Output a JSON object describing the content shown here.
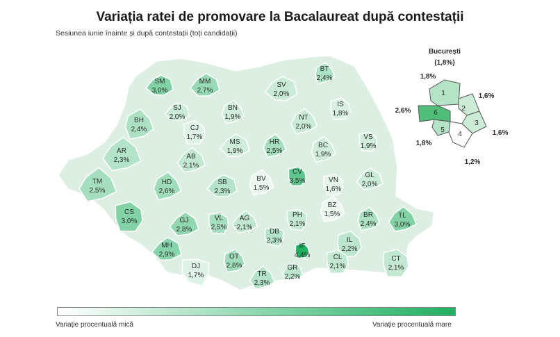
{
  "title": "Variația ratei de promovare la Bacalaureat după contestații",
  "subtitle": "Sesiunea iunie înainte și după contestații (toți candidații)",
  "legend": {
    "low_label": "Variație procentuală mică",
    "high_label": "Variație procentuală mare",
    "color_low": "#ffffff",
    "color_high": "#1fb061"
  },
  "counties": [
    {
      "code": "SM",
      "value": "3,0%"
    },
    {
      "code": "MM",
      "value": "2,7%"
    },
    {
      "code": "SV",
      "value": "2,0%"
    },
    {
      "code": "BT",
      "value": "2,4%"
    },
    {
      "code": "SJ",
      "value": "2,0%"
    },
    {
      "code": "BN",
      "value": "1,9%"
    },
    {
      "code": "NT",
      "value": "2,0%"
    },
    {
      "code": "IS",
      "value": "1,8%"
    },
    {
      "code": "BH",
      "value": "2,4%"
    },
    {
      "code": "CJ",
      "value": "1,7%"
    },
    {
      "code": "MS",
      "value": "1,9%"
    },
    {
      "code": "HR",
      "value": "2,5%"
    },
    {
      "code": "BC",
      "value": "1,9%"
    },
    {
      "code": "VS",
      "value": "1,9%"
    },
    {
      "code": "AR",
      "value": "2,3%"
    },
    {
      "code": "AB",
      "value": "2,1%"
    },
    {
      "code": "CV",
      "value": "3,5%"
    },
    {
      "code": "GL",
      "value": "2,0%"
    },
    {
      "code": "TM",
      "value": "2,5%"
    },
    {
      "code": "HD",
      "value": "2,6%"
    },
    {
      "code": "SB",
      "value": "2,3%"
    },
    {
      "code": "BV",
      "value": "1,5%"
    },
    {
      "code": "VN",
      "value": "1,6%"
    },
    {
      "code": "BZ",
      "value": "1,5%"
    },
    {
      "code": "CS",
      "value": "3,0%"
    },
    {
      "code": "GJ",
      "value": "2,8%"
    },
    {
      "code": "VL",
      "value": "2,5%"
    },
    {
      "code": "AG",
      "value": "2,1%"
    },
    {
      "code": "PH",
      "value": "2,1%"
    },
    {
      "code": "BR",
      "value": "2,4%"
    },
    {
      "code": "TL",
      "value": "3,0%"
    },
    {
      "code": "DB",
      "value": "2,3%"
    },
    {
      "code": "IF",
      "value": "4,4%"
    },
    {
      "code": "IL",
      "value": "2,2%"
    },
    {
      "code": "MH",
      "value": "2,9%"
    },
    {
      "code": "OT",
      "value": "2,6%"
    },
    {
      "code": "DJ",
      "value": "1,7%"
    },
    {
      "code": "TR",
      "value": "2,3%"
    },
    {
      "code": "GR",
      "value": "2,2%"
    },
    {
      "code": "CL",
      "value": "2,1%"
    },
    {
      "code": "CT",
      "value": "2,1%"
    }
  ],
  "bucharest": {
    "title": "București",
    "total": "(1,8%)",
    "sectors": [
      {
        "sector": "1",
        "value": "1,8%"
      },
      {
        "sector": "2",
        "value": "1,6%"
      },
      {
        "sector": "3",
        "value": "1,6%"
      },
      {
        "sector": "4",
        "value": "1,2%"
      },
      {
        "sector": "5",
        "value": "1,8%"
      },
      {
        "sector": "6",
        "value": "2,6%"
      }
    ]
  }
}
